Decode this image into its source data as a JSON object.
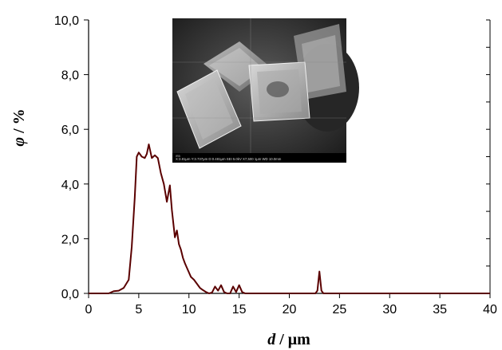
{
  "chart_data": {
    "type": "line",
    "title": "",
    "xlabel_var": "d",
    "xlabel_unit": " / μm",
    "ylabel_var": "φ",
    "ylabel_unit": " / %",
    "xlim": [
      0,
      40
    ],
    "ylim": [
      0,
      10
    ],
    "x_ticks": [
      0,
      5,
      10,
      15,
      20,
      25,
      30,
      35,
      40
    ],
    "x_tick_labels": [
      "0",
      "5",
      "10",
      "15",
      "20",
      "25",
      "30",
      "35",
      "40"
    ],
    "y_ticks": [
      0,
      2,
      4,
      6,
      8,
      10
    ],
    "y_tick_labels": [
      "0,0",
      "2,0",
      "4,0",
      "6,0",
      "8,0",
      "10,0"
    ],
    "grid": false,
    "line_color": "#5a0000",
    "series": [
      {
        "x": [
          0,
          2.0,
          2.5,
          3.0,
          3.5,
          4.0,
          4.3,
          4.6,
          4.8,
          5.0,
          5.3,
          5.6,
          5.8,
          6.0,
          6.3,
          6.6,
          6.9,
          7.2,
          7.5,
          7.8,
          8.1,
          8.3,
          8.6,
          8.8,
          9.0,
          9.2,
          9.4,
          9.6,
          9.9,
          10.2,
          10.5,
          10.8,
          11.1,
          11.4,
          11.7,
          12.0,
          12.3,
          12.6,
          12.9,
          13.2,
          13.5,
          13.8,
          14.1,
          14.4,
          14.7,
          15.0,
          15.3,
          15.6,
          15.9,
          16.3,
          22.6,
          22.8,
          23.0,
          23.2,
          23.4,
          40
        ],
        "y": [
          0,
          0,
          0.08,
          0.1,
          0.2,
          0.5,
          1.7,
          3.5,
          5.0,
          5.15,
          5.0,
          4.95,
          5.1,
          5.45,
          4.95,
          5.05,
          4.95,
          4.4,
          4.0,
          3.35,
          3.95,
          3.05,
          2.05,
          2.3,
          1.8,
          1.6,
          1.3,
          1.1,
          0.85,
          0.6,
          0.5,
          0.35,
          0.2,
          0.12,
          0.05,
          0.0,
          0.03,
          0.25,
          0.1,
          0.3,
          0.05,
          0.0,
          0.0,
          0.25,
          0.05,
          0.3,
          0.05,
          0.0,
          0.0,
          0,
          0,
          0.1,
          0.8,
          0.1,
          0,
          0
        ]
      }
    ],
    "inset_image": {
      "footer_text": "X:3.81μm  Y:3.737μm  D:0.481μm    SEI  5.0kV  X7,500  1μm  WD 10.0mm",
      "label_left": "IRB"
    }
  }
}
